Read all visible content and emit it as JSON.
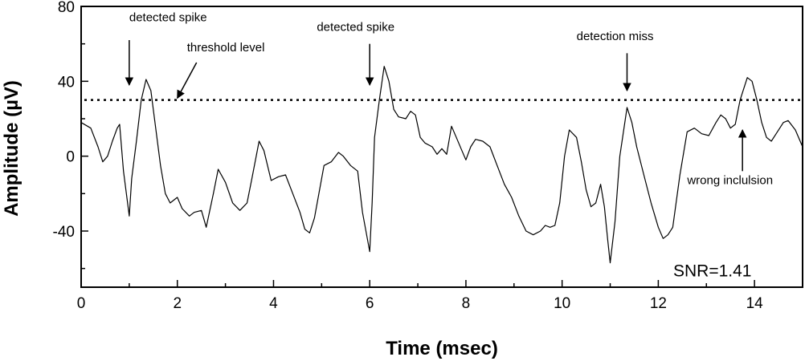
{
  "chart_data": {
    "type": "line",
    "title": "",
    "xlabel": "Time (msec)",
    "ylabel": "Amplitude (µV)",
    "xlim": [
      0,
      15
    ],
    "ylim": [
      -70,
      80
    ],
    "x_ticks": [
      0,
      2,
      4,
      6,
      8,
      10,
      12,
      14
    ],
    "y_ticks": [
      -40,
      0,
      40,
      80
    ],
    "grid": false,
    "threshold": 30,
    "series": [
      {
        "points": [
          [
            0.0,
            18
          ],
          [
            0.2,
            15
          ],
          [
            0.35,
            5
          ],
          [
            0.45,
            -3
          ],
          [
            0.55,
            0
          ],
          [
            0.65,
            8
          ],
          [
            0.75,
            15
          ],
          [
            0.8,
            17
          ],
          [
            0.88,
            -8
          ],
          [
            1.0,
            -32
          ],
          [
            1.05,
            -12
          ],
          [
            1.15,
            8
          ],
          [
            1.25,
            30
          ],
          [
            1.35,
            41
          ],
          [
            1.45,
            35
          ],
          [
            1.55,
            15
          ],
          [
            1.65,
            -5
          ],
          [
            1.75,
            -20
          ],
          [
            1.85,
            -25
          ],
          [
            2.0,
            -22
          ],
          [
            2.1,
            -28
          ],
          [
            2.25,
            -32
          ],
          [
            2.35,
            -30
          ],
          [
            2.5,
            -29
          ],
          [
            2.6,
            -38
          ],
          [
            2.75,
            -20
          ],
          [
            2.85,
            -7
          ],
          [
            3.0,
            -14
          ],
          [
            3.15,
            -25
          ],
          [
            3.3,
            -29
          ],
          [
            3.45,
            -25
          ],
          [
            3.55,
            -12
          ],
          [
            3.7,
            8
          ],
          [
            3.8,
            3
          ],
          [
            3.95,
            -13
          ],
          [
            4.1,
            -11
          ],
          [
            4.25,
            -10
          ],
          [
            4.4,
            -20
          ],
          [
            4.55,
            -30
          ],
          [
            4.65,
            -39
          ],
          [
            4.75,
            -41
          ],
          [
            4.85,
            -33
          ],
          [
            5.05,
            -5
          ],
          [
            5.2,
            -3
          ],
          [
            5.35,
            2
          ],
          [
            5.45,
            0
          ],
          [
            5.6,
            -5
          ],
          [
            5.75,
            -8
          ],
          [
            5.85,
            -30
          ],
          [
            6.0,
            -51
          ],
          [
            6.05,
            -25
          ],
          [
            6.1,
            10
          ],
          [
            6.2,
            30
          ],
          [
            6.3,
            48
          ],
          [
            6.4,
            40
          ],
          [
            6.5,
            25
          ],
          [
            6.6,
            21
          ],
          [
            6.75,
            20
          ],
          [
            6.85,
            24
          ],
          [
            6.95,
            22
          ],
          [
            7.05,
            10
          ],
          [
            7.15,
            7
          ],
          [
            7.3,
            5
          ],
          [
            7.4,
            1
          ],
          [
            7.5,
            4
          ],
          [
            7.6,
            1
          ],
          [
            7.7,
            16
          ],
          [
            7.8,
            10
          ],
          [
            7.9,
            4
          ],
          [
            8.0,
            -2
          ],
          [
            8.1,
            5
          ],
          [
            8.2,
            9
          ],
          [
            8.35,
            8
          ],
          [
            8.5,
            5
          ],
          [
            8.65,
            -5
          ],
          [
            8.8,
            -15
          ],
          [
            8.95,
            -22
          ],
          [
            9.1,
            -32
          ],
          [
            9.25,
            -40
          ],
          [
            9.4,
            -42
          ],
          [
            9.55,
            -40
          ],
          [
            9.65,
            -37
          ],
          [
            9.75,
            -38
          ],
          [
            9.85,
            -37
          ],
          [
            9.95,
            -25
          ],
          [
            10.05,
            0
          ],
          [
            10.15,
            14
          ],
          [
            10.3,
            10
          ],
          [
            10.4,
            -3
          ],
          [
            10.5,
            -18
          ],
          [
            10.6,
            -27
          ],
          [
            10.7,
            -25
          ],
          [
            10.8,
            -15
          ],
          [
            10.88,
            -27
          ],
          [
            10.95,
            -45
          ],
          [
            11.0,
            -57
          ],
          [
            11.1,
            -35
          ],
          [
            11.2,
            0
          ],
          [
            11.35,
            26
          ],
          [
            11.45,
            18
          ],
          [
            11.55,
            5
          ],
          [
            11.7,
            -10
          ],
          [
            11.85,
            -25
          ],
          [
            12.0,
            -38
          ],
          [
            12.1,
            -44
          ],
          [
            12.2,
            -42
          ],
          [
            12.3,
            -38
          ],
          [
            12.45,
            -10
          ],
          [
            12.6,
            13
          ],
          [
            12.75,
            15
          ],
          [
            12.9,
            12
          ],
          [
            13.05,
            11
          ],
          [
            13.2,
            18
          ],
          [
            13.3,
            22
          ],
          [
            13.4,
            20
          ],
          [
            13.5,
            15
          ],
          [
            13.6,
            17
          ],
          [
            13.7,
            30
          ],
          [
            13.85,
            42
          ],
          [
            13.95,
            40
          ],
          [
            14.05,
            30
          ],
          [
            14.15,
            18
          ],
          [
            14.25,
            10
          ],
          [
            14.35,
            8
          ],
          [
            14.45,
            12
          ],
          [
            14.6,
            18
          ],
          [
            14.7,
            19
          ],
          [
            14.85,
            14
          ],
          [
            15.0,
            5
          ]
        ]
      }
    ],
    "annotations": [
      {
        "text": "detected spike",
        "x": 1.0,
        "y": 72,
        "arrow_from": [
          1.0,
          62
        ],
        "arrow_to": [
          1.0,
          38
        ]
      },
      {
        "text": "threshold level",
        "x": 2.2,
        "y": 56,
        "arrow_from": [
          2.4,
          50
        ],
        "arrow_to": [
          2.0,
          31
        ]
      },
      {
        "text": "detected spike",
        "x": 4.9,
        "y": 67,
        "arrow_from": [
          6.0,
          60
        ],
        "arrow_to": [
          6.0,
          38
        ]
      },
      {
        "text": "detection miss",
        "x": 10.3,
        "y": 62,
        "arrow_from": [
          11.35,
          55
        ],
        "arrow_to": [
          11.35,
          35
        ]
      },
      {
        "text": "wrong inclulsion",
        "x": 12.6,
        "y": -15,
        "arrow_from": [
          13.75,
          -8
        ],
        "arrow_to": [
          13.75,
          14
        ]
      }
    ],
    "inset_text": "SNR=1.41"
  }
}
